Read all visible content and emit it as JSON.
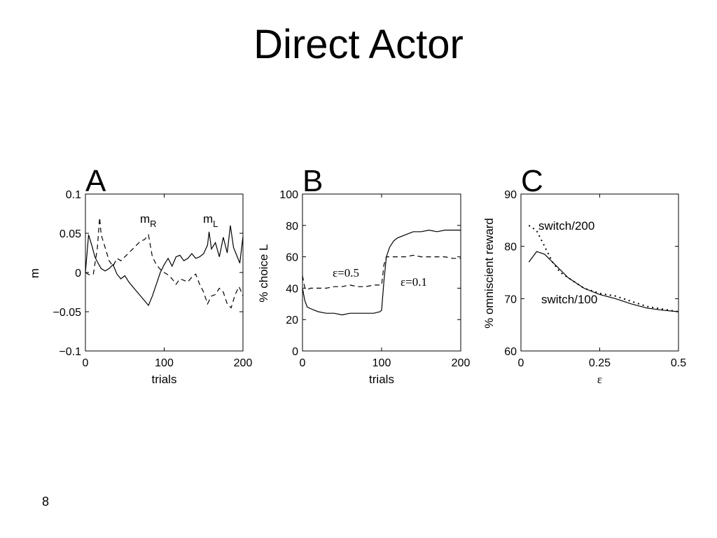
{
  "slide": {
    "title": "Direct Actor",
    "page_number": "8"
  },
  "chart_data": [
    {
      "panel": "A",
      "type": "line",
      "xlabel": "trials",
      "ylabel": "m",
      "xlim": [
        0,
        200
      ],
      "ylim": [
        -0.1,
        0.1
      ],
      "xticks": [
        "0",
        "100",
        "200"
      ],
      "yticks": [
        "0.1",
        "0.05",
        "0",
        "−0.05",
        "−0.1"
      ],
      "annotations": [
        {
          "base": "m",
          "sub": "R"
        },
        {
          "base": "m",
          "sub": "L"
        }
      ],
      "series": [
        {
          "name": "",
          "style": "solid",
          "x": [
            0,
            4,
            8,
            12,
            16,
            20,
            25,
            30,
            35,
            40,
            45,
            50,
            55,
            60,
            65,
            70,
            75,
            80,
            85,
            90,
            95,
            100,
            105,
            110,
            115,
            120,
            125,
            130,
            135,
            140,
            145,
            150,
            155,
            157,
            160,
            165,
            170,
            175,
            180,
            184,
            188,
            192,
            196,
            200
          ],
          "y": [
            0.0,
            0.048,
            0.035,
            0.02,
            0.012,
            0.005,
            0.002,
            0.005,
            0.01,
            -0.002,
            -0.008,
            -0.004,
            -0.012,
            -0.018,
            -0.024,
            -0.03,
            -0.036,
            -0.042,
            -0.03,
            -0.015,
            0.0,
            0.01,
            0.018,
            0.008,
            0.02,
            0.022,
            0.015,
            0.018,
            0.024,
            0.018,
            0.02,
            0.024,
            0.035,
            0.052,
            0.03,
            0.038,
            0.02,
            0.045,
            0.025,
            0.06,
            0.032,
            0.022,
            0.012,
            0.046
          ]
        },
        {
          "name": "",
          "style": "dashed",
          "x": [
            0,
            5,
            10,
            15,
            18,
            20,
            25,
            30,
            35,
            40,
            45,
            50,
            55,
            60,
            65,
            70,
            75,
            80,
            85,
            90,
            95,
            100,
            105,
            110,
            115,
            120,
            125,
            130,
            135,
            140,
            145,
            150,
            155,
            160,
            165,
            170,
            175,
            180,
            185,
            190,
            195,
            200
          ],
          "y": [
            0.0,
            -0.003,
            -0.002,
            0.03,
            0.07,
            0.048,
            0.032,
            0.015,
            0.008,
            0.018,
            0.015,
            0.02,
            0.025,
            0.03,
            0.035,
            0.04,
            0.042,
            0.048,
            0.02,
            0.01,
            0.004,
            0.0,
            -0.003,
            -0.008,
            -0.015,
            -0.008,
            -0.01,
            -0.012,
            -0.006,
            -0.002,
            -0.015,
            -0.025,
            -0.04,
            -0.03,
            -0.028,
            -0.02,
            -0.025,
            -0.04,
            -0.045,
            -0.028,
            -0.018,
            -0.03
          ]
        }
      ]
    },
    {
      "panel": "B",
      "type": "line",
      "xlabel": "trials",
      "ylabel": "% choice L",
      "xlim": [
        0,
        200
      ],
      "ylim": [
        0,
        100
      ],
      "xticks": [
        "0",
        "100",
        "200"
      ],
      "yticks": [
        "100",
        "80",
        "60",
        "40",
        "20",
        "0"
      ],
      "annotations": [
        "ε=0.5",
        "ε=0.1"
      ],
      "series": [
        {
          "name": "",
          "style": "solid",
          "x": [
            0,
            3,
            6,
            10,
            15,
            20,
            30,
            40,
            50,
            60,
            70,
            80,
            90,
            98,
            100,
            103,
            106,
            110,
            115,
            120,
            130,
            140,
            150,
            160,
            170,
            180,
            190,
            200
          ],
          "y": [
            40,
            32,
            28,
            27,
            26,
            25,
            24,
            24,
            23,
            24,
            24,
            24,
            24,
            25,
            26,
            45,
            60,
            66,
            70,
            72,
            74,
            76,
            76,
            77,
            76,
            77,
            77,
            77
          ]
        },
        {
          "name": "",
          "style": "dashed",
          "x": [
            0,
            3,
            6,
            10,
            20,
            30,
            40,
            50,
            60,
            70,
            80,
            90,
            100,
            103,
            106,
            110,
            120,
            130,
            140,
            150,
            160,
            170,
            180,
            190,
            200
          ],
          "y": [
            48,
            40,
            39,
            40,
            40,
            40,
            41,
            41,
            42,
            41,
            41,
            42,
            42,
            55,
            60,
            60,
            60,
            60,
            61,
            60,
            60,
            60,
            60,
            59,
            59
          ]
        }
      ]
    },
    {
      "panel": "C",
      "type": "line",
      "xlabel": "ε",
      "ylabel": "% omniscient reward",
      "xlim": [
        0,
        0.5
      ],
      "ylim": [
        60,
        90
      ],
      "xticks": [
        "0",
        "0.25",
        "0.5"
      ],
      "yticks": [
        "90",
        "80",
        "70",
        "60"
      ],
      "annotations": [
        "switch/200",
        "switch/100"
      ],
      "series": [
        {
          "name": "switch/200",
          "style": "dotted",
          "x": [
            0.025,
            0.05,
            0.075,
            0.1,
            0.125,
            0.15,
            0.2,
            0.25,
            0.3,
            0.35,
            0.4,
            0.45,
            0.5
          ],
          "y": [
            84,
            83,
            80,
            77,
            75,
            74,
            72,
            71,
            70.5,
            69.5,
            68.5,
            68,
            67.5
          ]
        },
        {
          "name": "switch/100",
          "style": "solid",
          "x": [
            0.025,
            0.05,
            0.075,
            0.1,
            0.125,
            0.15,
            0.2,
            0.25,
            0.3,
            0.35,
            0.4,
            0.45,
            0.5
          ],
          "y": [
            77,
            79,
            78.5,
            77,
            75.5,
            74,
            72,
            70.8,
            70,
            69,
            68.2,
            67.8,
            67.5
          ]
        }
      ]
    }
  ]
}
